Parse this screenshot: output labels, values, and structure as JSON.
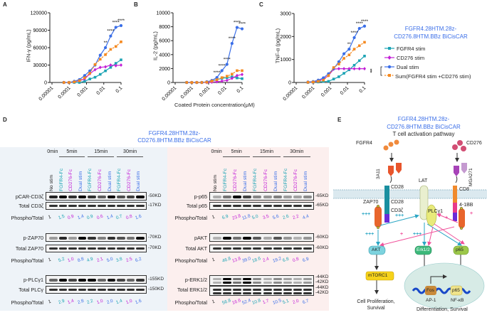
{
  "panels": {
    "A": "A",
    "B": "B",
    "C": "C",
    "D": "D",
    "E": "E"
  },
  "colors": {
    "fgfr4": "#1ba3b4",
    "cd276": "#c21fd6",
    "dual": "#3a6ee8",
    "sum": "#f5891f",
    "black": "#222222"
  },
  "chart_data": [
    {
      "type": "line",
      "panel": "A",
      "title": "",
      "ylabel": "IFN-γ (pg/mL)",
      "xlabel": "",
      "xscale": "log",
      "xlim": [
        1e-05,
        0.1
      ],
      "xticks": [
        "0.00001",
        "0.0001",
        "0.001",
        "0.01",
        "0.1"
      ],
      "ylim": [
        0,
        120000
      ],
      "yticks": [
        "0",
        "30000",
        "60000",
        "90000",
        "120000"
      ],
      "grid": false,
      "x": [
        4.88e-05,
        9.77e-05,
        0.000195,
        0.00039,
        0.00078,
        0.00156,
        0.003125,
        0.00625,
        0.0125,
        0.025,
        0.05,
        0.1
      ],
      "series": [
        {
          "name": "FGFR4 stim",
          "key": "fgfr4",
          "values": [
            0,
            0,
            0,
            0,
            2000,
            6000,
            9000,
            14000,
            20000,
            26000,
            33000,
            39000
          ]
        },
        {
          "name": "CD276 stim",
          "key": "cd276",
          "values": [
            0,
            0,
            1000,
            3000,
            6000,
            15000,
            22000,
            26000,
            27000,
            30000,
            29000,
            30000
          ]
        },
        {
          "name": "Dual stim",
          "key": "dual",
          "values": [
            0,
            0,
            2000,
            5000,
            12000,
            20000,
            30000,
            47000,
            60000,
            80000,
            95000,
            98000
          ]
        },
        {
          "name": "Sum(FGFR4 stim +CD276 stim)",
          "key": "sum",
          "dashed": true,
          "values": [
            0,
            0,
            1000,
            3000,
            8000,
            16000,
            31000,
            40000,
            48000,
            57000,
            62000,
            70000
          ]
        }
      ],
      "significance": [
        {
          "x": 0.0125,
          "label": "**"
        },
        {
          "x": 0.025,
          "label": "****"
        },
        {
          "x": 0.05,
          "label": "****"
        },
        {
          "x": 0.1,
          "label": "****"
        }
      ]
    },
    {
      "type": "line",
      "panel": "B",
      "title": "",
      "ylabel": "IL-2 (pg/mL)",
      "xlabel": "Coated Protein concentration(μM)",
      "xscale": "log",
      "xlim": [
        1e-05,
        0.1
      ],
      "xticks": [
        "0.00001",
        "0.0001",
        "0.001",
        "0.01",
        "0.1"
      ],
      "ylim": [
        0,
        10000
      ],
      "yticks": [
        "0",
        "2000",
        "4000",
        "6000",
        "8000",
        "10000"
      ],
      "grid": false,
      "x": [
        4.88e-05,
        9.77e-05,
        0.000195,
        0.00039,
        0.00078,
        0.00156,
        0.003125,
        0.00625,
        0.0125,
        0.025,
        0.05,
        0.1
      ],
      "series": [
        {
          "name": "FGFR4 stim",
          "key": "fgfr4",
          "values": [
            0,
            0,
            0,
            0,
            50,
            200,
            400,
            600,
            700,
            800,
            650,
            550
          ]
        },
        {
          "name": "CD276 stim",
          "key": "cd276",
          "values": [
            0,
            0,
            0,
            0,
            0,
            50,
            100,
            200,
            300,
            600,
            1000,
            1150
          ]
        },
        {
          "name": "Dual stim",
          "key": "dual",
          "values": [
            0,
            0,
            0,
            0,
            100,
            300,
            700,
            1700,
            2600,
            5600,
            7900,
            7700
          ]
        },
        {
          "name": "Sum(FGFR4 stim +CD276 stim)",
          "key": "sum",
          "dashed": true,
          "values": [
            0,
            0,
            0,
            0,
            50,
            200,
            400,
            700,
            900,
            1200,
            1700,
            1700
          ]
        }
      ],
      "significance": [
        {
          "x": 0.003125,
          "label": "****"
        },
        {
          "x": 0.00625,
          "label": "****"
        },
        {
          "x": 0.0125,
          "label": "****"
        },
        {
          "x": 0.025,
          "label": "****"
        },
        {
          "x": 0.05,
          "label": "****"
        },
        {
          "x": 0.1,
          "label": "****"
        }
      ]
    },
    {
      "type": "line",
      "panel": "C",
      "title": "",
      "ylabel": "TNF-α (pg/mL)",
      "xlabel": "",
      "xscale": "log",
      "xlim": [
        1e-05,
        0.1
      ],
      "xticks": [
        "0.00001",
        "0.0001",
        "0.001",
        "0.01",
        "0.1"
      ],
      "ylim": [
        0,
        3000
      ],
      "yticks": [
        "0",
        "1000",
        "2000",
        "3000"
      ],
      "grid": false,
      "x": [
        4.88e-05,
        9.77e-05,
        0.000195,
        0.00039,
        0.00078,
        0.00156,
        0.003125,
        0.00625,
        0.0125,
        0.025,
        0.05,
        0.1
      ],
      "series": [
        {
          "name": "FGFR4 stim",
          "key": "fgfr4",
          "values": [
            0,
            10,
            20,
            40,
            50,
            150,
            250,
            400,
            550,
            750,
            950,
            1150
          ]
        },
        {
          "name": "CD276 stim",
          "key": "cd276",
          "values": [
            10,
            20,
            60,
            150,
            300,
            580,
            600,
            600,
            600,
            600,
            600,
            600
          ]
        },
        {
          "name": "Dual stim",
          "key": "dual",
          "values": [
            20,
            40,
            100,
            200,
            380,
            600,
            900,
            1250,
            1450,
            1950,
            2350,
            2450
          ]
        },
        {
          "name": "Sum(FGFR4 stim +CD276 stim)",
          "key": "sum",
          "dashed": true,
          "values": [
            10,
            20,
            50,
            100,
            300,
            650,
            800,
            1050,
            1200,
            1450,
            1600,
            1750
          ]
        }
      ],
      "significance": [
        {
          "x": 0.0125,
          "label": "**"
        },
        {
          "x": 0.025,
          "label": "****"
        },
        {
          "x": 0.05,
          "label": "****"
        },
        {
          "x": 0.1,
          "label": "****"
        }
      ]
    }
  ],
  "legend": {
    "title_line1": "FGFR4.28HTM.28z-",
    "title_line2": "CD276.8HTM.BBz BiCisCAR",
    "items": [
      {
        "label": "FGFR4 stim",
        "key": "fgfr4"
      },
      {
        "label": "CD276 stim",
        "key": "cd276"
      },
      {
        "label": "Dual stim",
        "key": "dual"
      },
      {
        "label": "Sum(FGFR4 stim +CD276 stim)",
        "key": "sum"
      }
    ],
    "bracket_sig": "****"
  },
  "blots": {
    "title_line1": "FGFR4.28HTM.28z-",
    "title_line2": "CD276.8HTM.BBz BiCisCAR",
    "times": [
      "0min",
      "5min",
      "15min",
      "30min"
    ],
    "lanes": [
      {
        "label": "No stim",
        "key": "black"
      },
      {
        "label": "FGFR4-Fc",
        "key": "fgfr4"
      },
      {
        "label": "CD276-Fc",
        "key": "cd276"
      },
      {
        "label": "Dual stim",
        "key": "dual"
      },
      {
        "label": "FGFR4-Fc",
        "key": "fgfr4"
      },
      {
        "label": "CD276-Fc",
        "key": "cd276"
      },
      {
        "label": "Dual stim",
        "key": "dual"
      },
      {
        "label": "FGFR4-Fc",
        "key": "fgfr4"
      },
      {
        "label": "CD276-Fc",
        "key": "cd276"
      },
      {
        "label": "Dual stim",
        "key": "dual"
      }
    ],
    "ratio_label": "Phospho/Total",
    "left": [
      {
        "phospho": "pCAR-CD3ζ",
        "phospho_kd": "50KD",
        "total": "Total CD3ζ",
        "total_kd": "17KD",
        "ratios": [
          "1",
          "1.5",
          "0.9",
          "1.4",
          "0.9",
          "0.6",
          "1.4",
          "0.7",
          "0.8",
          "1.6"
        ]
      },
      {
        "phospho": "p-ZAP70",
        "phospho_kd": "70KD",
        "total": "Total ZAP70",
        "total_kd": "70KD",
        "ratios": [
          "1",
          "5.2",
          "1.0",
          "8.8",
          "4.9",
          "2.1",
          "5.0",
          "3.8",
          "2.5",
          "6.2"
        ]
      },
      {
        "phospho": "p-PLCγ1",
        "phospho_kd": "155KD",
        "total": "Total PLCγ",
        "total_kd": "150KD",
        "ratios": [
          "1",
          "2.9",
          "1.4",
          "2.8",
          "2.2",
          "1.0",
          "2.0",
          "1.4",
          "1.0",
          "1.6"
        ]
      }
    ],
    "right": [
      {
        "phospho": "p-p65",
        "phospho_kd": "65KD",
        "total": "Total p65",
        "total_kd": "65KD",
        "ratios": [
          "1",
          "6.9",
          "23.8",
          "11.8",
          "5.0",
          "3.5",
          "5.6",
          "2.6",
          "2.2",
          "4.4"
        ]
      },
      {
        "phospho": "pAKT",
        "phospho_kd": "60KD",
        "total": "Total AKT",
        "total_kd": "60KD",
        "ratios": [
          "1",
          "46.8",
          "13.8",
          "39.0",
          "18.6",
          "2.4",
          "19.2",
          "6.8",
          "0.8",
          "6.9"
        ]
      },
      {
        "phospho": "p-ERK1/2",
        "phospho_kd": "44KD",
        "phospho_kd2": "42KD",
        "total": "Total ERK1/2",
        "total_kd": "44KD",
        "total_kd2": "42KD",
        "ratios": [
          "1",
          "56.8",
          "16.6",
          "52.4",
          "10.8",
          "1.7",
          "10.5",
          "5.1",
          "2.0",
          "6.7"
        ]
      }
    ]
  },
  "pathway": {
    "title_line1": "FGFR4.28HTM.28z-",
    "title_line2": "CD276.8HTM.BBz BiCisCAR",
    "subtitle": "T cell activation pathway",
    "fgfr4": "FGFR4",
    "cd276": "CD276",
    "vh": "V",
    "vh_sub": "H",
    "vl": "V",
    "vl_sub": "L",
    "scfv_left": "3A11",
    "scfv_right": "MGA271",
    "cd28_hinge": "CD28",
    "cd28": "CD28",
    "cd3z": "CD3ζ",
    "cd8": "CD8",
    "bb": "4-1BB",
    "zap70": "ZAP70",
    "lat": "LAT",
    "plcg1": "PLCγ1",
    "akt": "AKT",
    "erk": "Erk1/2",
    "p65": "p65",
    "mtorc1": "mTORC1",
    "fos": "Fos",
    "p65_nuc": "p65",
    "ap1": "AP-1",
    "nfkb": "NF-κB",
    "out_left1": "Cell Proliferation,",
    "out_left2": "Survival",
    "out_right": "Differentiation, Survival",
    "plus3": "+++",
    "plus1": "+"
  }
}
